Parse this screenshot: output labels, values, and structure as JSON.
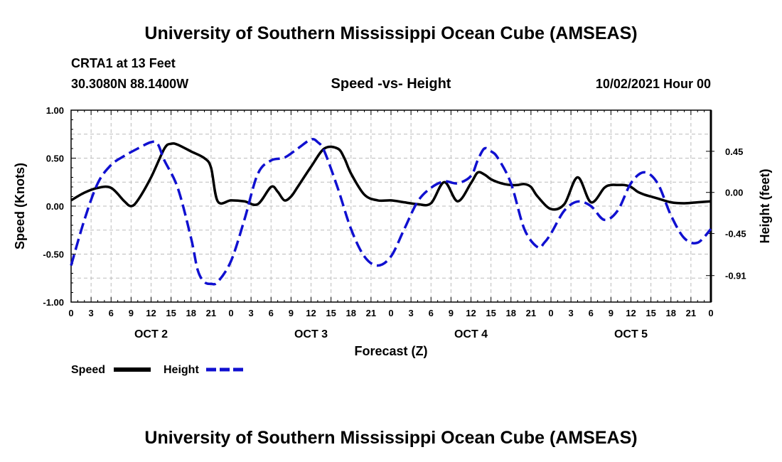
{
  "header": {
    "title": "University of Southern Mississippi Ocean Cube (AMSEAS)",
    "station": "CRTA1 at 13 Feet",
    "coords": "30.3080N  88.1400W",
    "chart_title": "Speed -vs- Height",
    "datetime": "10/02/2021 Hour 00"
  },
  "footer": {
    "title": "University of Southern Mississippi Ocean Cube (AMSEAS)"
  },
  "colors": {
    "speed": "#000000",
    "height": "#1010d0",
    "grid": "#bbbbbb"
  },
  "chart_data": {
    "type": "line",
    "title": "Speed -vs- Height",
    "xlabel": "Forecast (Z)",
    "ylabel": "Speed (Knots)",
    "y2label": "Height (feet)",
    "xlim": [
      0,
      96
    ],
    "ylim": [
      -1.0,
      1.0
    ],
    "y2lim": [
      -1.2,
      0.9
    ],
    "x_tick_values": [
      0,
      3,
      6,
      9,
      12,
      15,
      18,
      21,
      24,
      27,
      30,
      33,
      36,
      39,
      42,
      45,
      48,
      51,
      54,
      57,
      60,
      63,
      66,
      69,
      72,
      75,
      78,
      81,
      84,
      87,
      90,
      93,
      96
    ],
    "x_tick_labels": [
      "0",
      "3",
      "6",
      "9",
      "12",
      "15",
      "18",
      "21",
      "0",
      "3",
      "6",
      "9",
      "12",
      "15",
      "18",
      "21",
      "0",
      "3",
      "6",
      "9",
      "12",
      "15",
      "18",
      "21",
      "0",
      "3",
      "6",
      "9",
      "12",
      "15",
      "18",
      "21",
      "0"
    ],
    "y_tick_labels": [
      "1.00",
      "0.50",
      "0.00",
      "-0.50",
      "-1.00"
    ],
    "y2_tick_labels": [
      "0.45",
      "0.00",
      "-0.45",
      "-0.91"
    ],
    "day_labels": [
      {
        "label": "OCT 2",
        "x": 12
      },
      {
        "label": "OCT 3",
        "x": 36
      },
      {
        "label": "OCT 4",
        "x": 60
      },
      {
        "label": "OCT 5",
        "x": 84
      }
    ],
    "legend": [
      {
        "name": "Speed",
        "style": "solid"
      },
      {
        "name": "Height",
        "style": "dashed"
      }
    ],
    "series": [
      {
        "name": "Speed",
        "axis": "left",
        "style": "solid",
        "x": [
          0,
          2,
          4,
          6,
          8,
          9,
          10,
          12,
          14,
          15,
          16,
          18,
          20,
          21,
          22,
          24,
          26,
          28,
          30,
          31,
          32,
          33,
          34,
          36,
          38,
          40,
          41,
          42,
          44,
          46,
          48,
          50,
          52,
          54,
          56,
          58,
          60,
          61,
          62,
          63,
          64,
          65,
          66,
          67,
          68,
          69,
          70,
          72,
          74,
          76,
          78,
          80,
          81,
          82,
          83,
          84,
          85,
          86,
          87,
          88,
          90,
          92,
          94,
          96
        ],
        "y": [
          0.06,
          0.14,
          0.19,
          0.19,
          0.05,
          0.0,
          0.06,
          0.3,
          0.6,
          0.65,
          0.64,
          0.57,
          0.5,
          0.4,
          0.05,
          0.06,
          0.05,
          0.02,
          0.2,
          0.15,
          0.06,
          0.1,
          0.2,
          0.41,
          0.6,
          0.6,
          0.5,
          0.34,
          0.12,
          0.06,
          0.06,
          0.04,
          0.02,
          0.03,
          0.25,
          0.05,
          0.24,
          0.35,
          0.33,
          0.28,
          0.25,
          0.23,
          0.22,
          0.22,
          0.23,
          0.2,
          0.1,
          -0.03,
          0.02,
          0.3,
          0.04,
          0.19,
          0.22,
          0.22,
          0.22,
          0.2,
          0.15,
          0.12,
          0.1,
          0.08,
          0.04,
          0.03,
          0.04,
          0.05
        ]
      },
      {
        "name": "Height",
        "axis": "right",
        "style": "dashed",
        "x": [
          0,
          2,
          4,
          6,
          8,
          10,
          12,
          13,
          14,
          16,
          18,
          19,
          20,
          21,
          22,
          24,
          26,
          28,
          30,
          32,
          34,
          36,
          37,
          38,
          40,
          42,
          44,
          46,
          48,
          50,
          52,
          54,
          56,
          58,
          60,
          61,
          62,
          63,
          64,
          66,
          68,
          70,
          71,
          72,
          74,
          76,
          78,
          80,
          82,
          84,
          86,
          88,
          90,
          92,
          94,
          96
        ],
        "y": [
          -0.8,
          -0.3,
          0.1,
          0.3,
          0.4,
          0.48,
          0.55,
          0.53,
          0.35,
          0.05,
          -0.5,
          -0.85,
          -0.98,
          -1.0,
          -0.98,
          -0.75,
          -0.3,
          0.2,
          0.35,
          0.38,
          0.48,
          0.58,
          0.55,
          0.45,
          0.05,
          -0.4,
          -0.7,
          -0.8,
          -0.7,
          -0.4,
          -0.1,
          0.05,
          0.12,
          0.1,
          0.18,
          0.35,
          0.48,
          0.45,
          0.38,
          0.1,
          -0.4,
          -0.6,
          -0.55,
          -0.45,
          -0.2,
          -0.1,
          -0.15,
          -0.3,
          -0.2,
          0.1,
          0.22,
          0.1,
          -0.25,
          -0.5,
          -0.55,
          -0.4
        ]
      }
    ]
  }
}
